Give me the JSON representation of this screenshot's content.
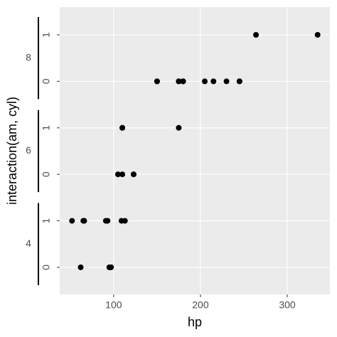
{
  "chart_data": {
    "type": "scatter",
    "x_label": "hp",
    "y_label": "interaction(am, cyl)",
    "xlim": [
      37.85,
      349.15
    ],
    "xticks": [
      100,
      200,
      300
    ],
    "grid": true,
    "color": "#000000",
    "groups": [
      {
        "label": "4",
        "levels": [
          {
            "label": "0",
            "values": [
              62,
              95,
              97
            ]
          },
          {
            "label": "1",
            "values": [
              93,
              66,
              52,
              65,
              66,
              91,
              113,
              109
            ]
          }
        ]
      },
      {
        "label": "6",
        "levels": [
          {
            "label": "0",
            "values": [
              110,
              105,
              123,
              123
            ]
          },
          {
            "label": "1",
            "values": [
              110,
              110,
              175
            ]
          }
        ]
      },
      {
        "label": "8",
        "levels": [
          {
            "label": "0",
            "values": [
              175,
              245,
              180,
              180,
              180,
              205,
              215,
              230,
              150,
              150,
              245,
              175
            ]
          },
          {
            "label": "1",
            "values": [
              264,
              335
            ]
          }
        ]
      }
    ]
  }
}
